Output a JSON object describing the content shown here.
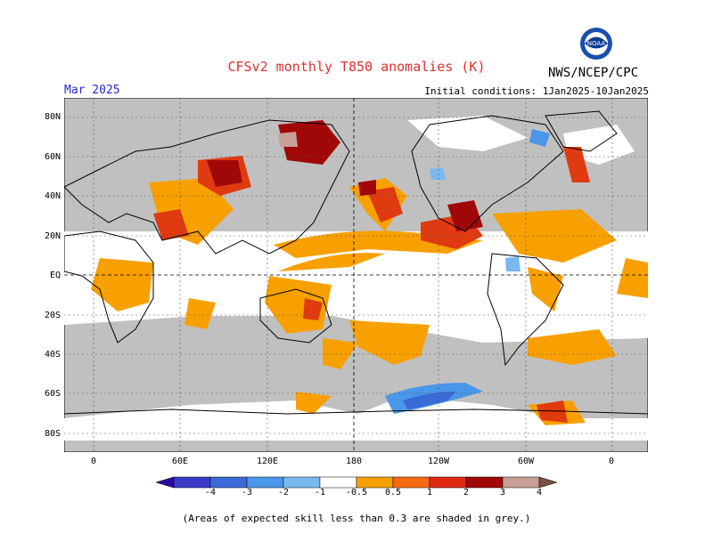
{
  "header": {
    "title": "CFSv2 monthly T850 anomalies (K)",
    "agency": "NWS/NCEP/CPC",
    "logo_text": "NOAA",
    "forecast_month": "Mar 2025",
    "initial_conditions": "Initial conditions: 1Jan2025-10Jan2025"
  },
  "axes": {
    "lat_labels": [
      "80N",
      "60N",
      "40N",
      "20N",
      "EQ",
      "20S",
      "40S",
      "60S",
      "80S"
    ],
    "lon_labels": [
      "0",
      "60E",
      "120E",
      "180",
      "120W",
      "60W",
      "0"
    ]
  },
  "colorbar": {
    "labels": [
      "-4",
      "-3",
      "-2",
      "-1",
      "-0.5",
      "0.5",
      "1",
      "2",
      "3",
      "4"
    ],
    "colors": [
      "#2a0aa0",
      "#3a3ac8",
      "#3a6ad8",
      "#4a96e8",
      "#7ab8f0",
      "#ffffff",
      "#f8a000",
      "#f86a10",
      "#e02a10",
      "#a00808",
      "#c8a098",
      "#7a5040"
    ]
  },
  "map_colors": {
    "land_outline": "#000000",
    "low_skill_grey": "#c0c0c0",
    "background": "#ffffff"
  },
  "footnote": "(Areas of expected skill less than 0.3 are shaded in grey.)"
}
